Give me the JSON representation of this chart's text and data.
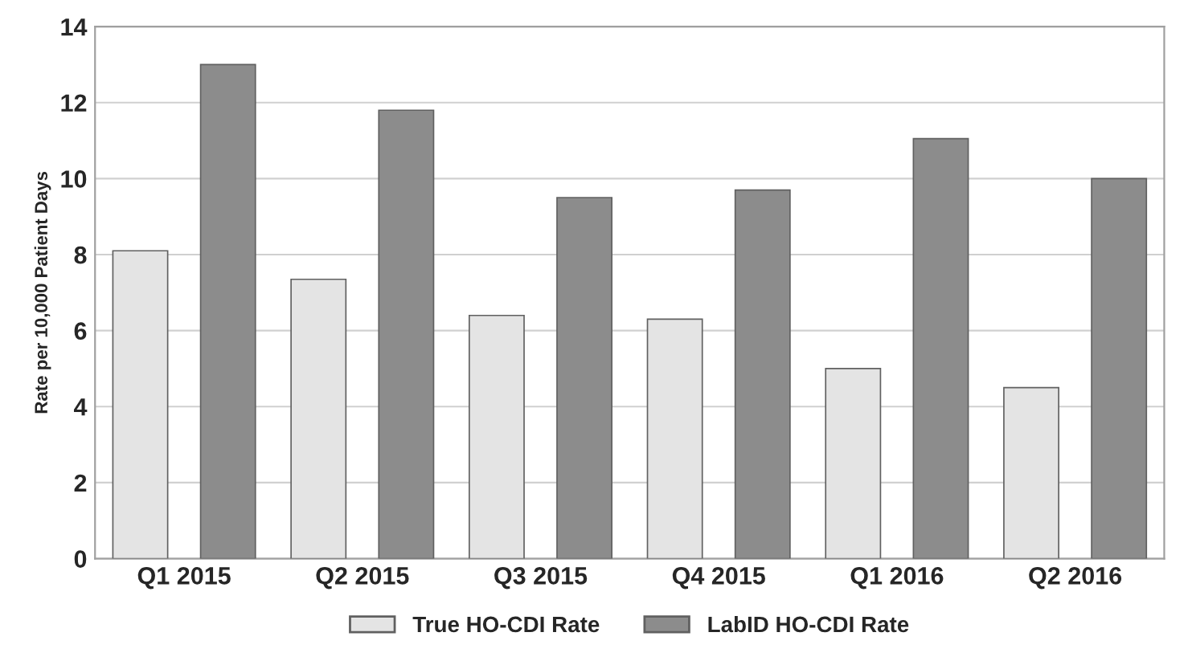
{
  "chart_data": {
    "type": "bar",
    "ylabel": "Rate per 10,000 Patient Days",
    "categories": [
      "Q1 2015",
      "Q2 2015",
      "Q3 2015",
      "Q4 2015",
      "Q1 2016",
      "Q2 2016"
    ],
    "series": [
      {
        "name": "True HO-CDI Rate",
        "color": "#e4e4e4",
        "values": [
          8.1,
          7.35,
          6.4,
          6.3,
          5.0,
          4.5
        ]
      },
      {
        "name": "LabID HO-CDI Rate",
        "color": "#8c8c8c",
        "values": [
          13.0,
          11.8,
          9.5,
          9.7,
          11.05,
          10.0
        ]
      }
    ],
    "ylim": [
      0,
      14
    ],
    "yticks": [
      0,
      2,
      4,
      6,
      8,
      10,
      12,
      14
    ],
    "grid": "y",
    "legend": "bottom"
  }
}
